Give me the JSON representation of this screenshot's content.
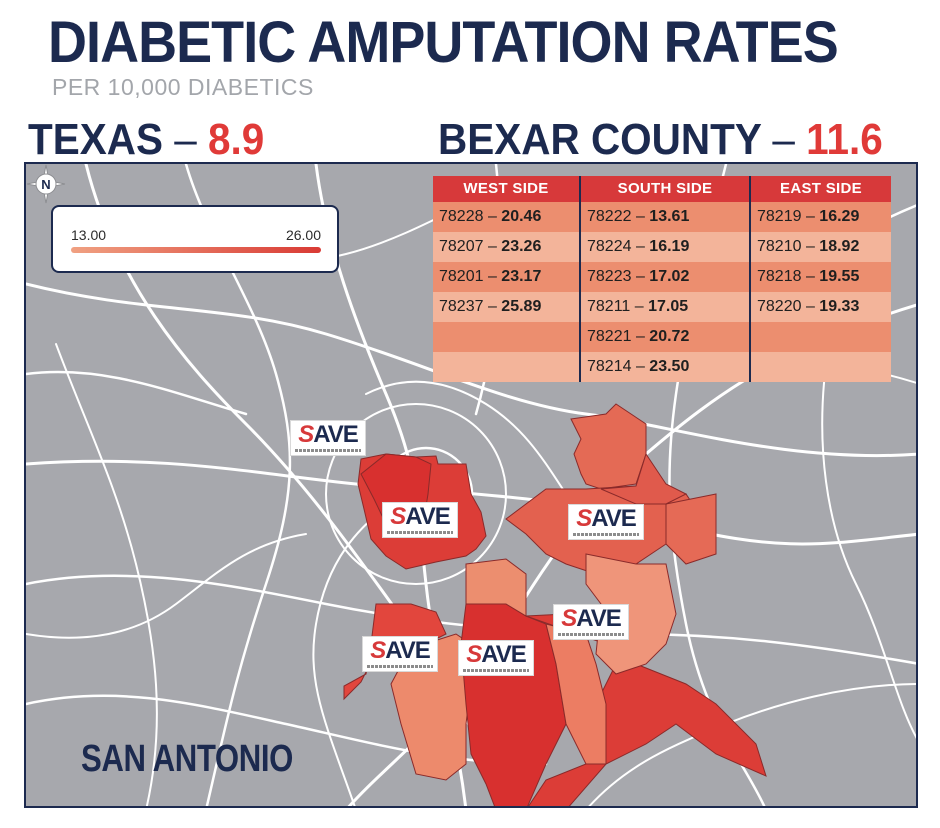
{
  "header": {
    "title": "DIABETIC AMPUTATION RATES",
    "subtitle": "PER 10,000 DIABETICS",
    "texas": {
      "label": "TEXAS",
      "dash": "–",
      "value": "8.9"
    },
    "bexar": {
      "label": "BEXAR COUNTY",
      "dash": "–",
      "value": "11.6"
    }
  },
  "legend": {
    "min": "13.00",
    "max": "26.00",
    "min_color": "#f0a182",
    "max_color": "#d93a34"
  },
  "table": {
    "west": {
      "header": "WEST SIDE",
      "rows": [
        {
          "zip": "78228",
          "rate": "20.46"
        },
        {
          "zip": "78207",
          "rate": "23.26"
        },
        {
          "zip": "78201",
          "rate": "23.17"
        },
        {
          "zip": "78237",
          "rate": "25.89"
        }
      ]
    },
    "south": {
      "header": "SOUTH SIDE",
      "rows": [
        {
          "zip": "78222",
          "rate": "13.61"
        },
        {
          "zip": "78224",
          "rate": "16.19"
        },
        {
          "zip": "78223",
          "rate": "17.02"
        },
        {
          "zip": "78211",
          "rate": "17.05"
        },
        {
          "zip": "78221",
          "rate": "20.72"
        },
        {
          "zip": "78214",
          "rate": "23.50"
        }
      ]
    },
    "east": {
      "header": "EAST SIDE",
      "rows": [
        {
          "zip": "78219",
          "rate": "16.29"
        },
        {
          "zip": "78210",
          "rate": "18.92"
        },
        {
          "zip": "78218",
          "rate": "19.55"
        },
        {
          "zip": "78220",
          "rate": "19.33"
        }
      ]
    }
  },
  "map": {
    "city_label": "SAN ANTONIO",
    "compass_letter": "N",
    "logo_text": {
      "s": "S",
      "rest": "AVE"
    },
    "colors": {
      "background": "#a7a8ad",
      "roads": "#ffffff",
      "navy": "#1c2a4f",
      "red": "#d7393a"
    }
  }
}
